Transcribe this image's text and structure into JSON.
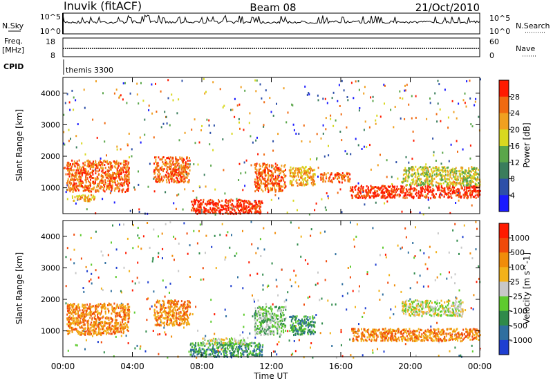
{
  "header": {
    "station": "Inuvik (fitACF)",
    "beam": "Beam 08",
    "date": "21/Oct/2010"
  },
  "strips": {
    "nsky_label": "N.Sky",
    "nsky_ticks": [
      "10^5",
      "10^0"
    ],
    "nsearch_label": "N.Search",
    "nsearch_ticks": [
      "10^5",
      "10^0"
    ],
    "freq_label": "Freq.",
    "freq_unit": "[MHz]",
    "freq_ticks": [
      "18",
      "8"
    ],
    "nave_label": "Nave",
    "nave_ticks": [
      "60",
      "0"
    ],
    "cpid_label": "CPID",
    "cpid_value": "themis 3300"
  },
  "colors": {
    "power": [
      "#1a1aff",
      "#2d4fa8",
      "#3a7d5c",
      "#5aa64a",
      "#d8d820",
      "#f0a020",
      "#f06a10",
      "#ff1a00"
    ],
    "velocity": [
      "#1f3fd0",
      "#2f6f9f",
      "#2f8a4a",
      "#5ecb2e",
      "#c8c8c8",
      "#f2b21a",
      "#f08c0a",
      "#f04a0a",
      "#ff1a00"
    ]
  },
  "chart_data": [
    {
      "type": "heatmap",
      "panel": "power",
      "xlabel": "",
      "ylabel": "Slant Range [km]",
      "ylim": [
        180,
        4500
      ],
      "y_ticks": [
        "4000",
        "3000",
        "2000",
        "1000"
      ],
      "colorbar_label": "Power [dB]",
      "colorbar_ticks": [
        "28",
        "24",
        "20",
        "16",
        "12",
        "8",
        "4"
      ],
      "x": [
        0,
        24
      ],
      "patches": [
        {
          "t": [
            0.2,
            3.8
          ],
          "r": [
            900,
            1900
          ],
          "c": 6
        },
        {
          "t": [
            0.5,
            1.8
          ],
          "r": [
            600,
            800
          ],
          "c": 5
        },
        {
          "t": [
            5.2,
            7.3
          ],
          "r": [
            1200,
            2000
          ],
          "c": 6
        },
        {
          "t": [
            7.3,
            11.5
          ],
          "r": [
            200,
            650
          ],
          "c": 7
        },
        {
          "t": [
            11.0,
            12.8
          ],
          "r": [
            900,
            1800
          ],
          "c": 6
        },
        {
          "t": [
            13.0,
            14.5
          ],
          "r": [
            1100,
            1700
          ],
          "c": 5
        },
        {
          "t": [
            14.8,
            16.5
          ],
          "r": [
            1200,
            1500
          ],
          "c": 6
        },
        {
          "t": [
            16.5,
            24
          ],
          "r": [
            700,
            1100
          ],
          "c": 7
        },
        {
          "t": [
            19.5,
            24
          ],
          "r": [
            1100,
            1700
          ],
          "c": 4
        }
      ]
    },
    {
      "type": "heatmap",
      "panel": "velocity",
      "xlabel": "Time UT",
      "ylabel": "Slant Range [km]",
      "ylim": [
        180,
        4500
      ],
      "y_ticks": [
        "4000",
        "3000",
        "2000",
        "1000"
      ],
      "x_ticks": [
        "00:00",
        "04:00",
        "08:00",
        "12:00",
        "16:00",
        "20:00",
        "00:00"
      ],
      "colorbar_label": "Velocity [m s^-1]",
      "colorbar_ticks": [
        "1000",
        "500",
        "100",
        "25",
        "-25",
        "-100",
        "-500",
        "-1000"
      ],
      "x": [
        0,
        24
      ],
      "patches": [
        {
          "t": [
            0.2,
            3.8
          ],
          "r": [
            900,
            1900
          ],
          "c": 6
        },
        {
          "t": [
            5.2,
            7.3
          ],
          "r": [
            1200,
            2000
          ],
          "c": 6
        },
        {
          "t": [
            7.3,
            11.5
          ],
          "r": [
            200,
            650
          ],
          "c": 2
        },
        {
          "t": [
            8.0,
            10.5
          ],
          "r": [
            600,
            800
          ],
          "c": 4
        },
        {
          "t": [
            11.0,
            12.8
          ],
          "r": [
            900,
            1800
          ],
          "c": 3
        },
        {
          "t": [
            13.0,
            14.5
          ],
          "r": [
            900,
            1500
          ],
          "c": 2
        },
        {
          "t": [
            16.5,
            24
          ],
          "r": [
            700,
            1100
          ],
          "c": 6
        },
        {
          "t": [
            19.5,
            23
          ],
          "r": [
            1500,
            2000
          ],
          "c": 4
        }
      ]
    }
  ]
}
